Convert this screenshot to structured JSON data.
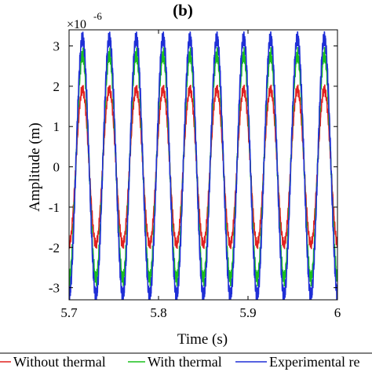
{
  "chart_data": {
    "type": "line",
    "title": "(b)",
    "xlabel": "Time (s)",
    "ylabel": "Amplitude (m)",
    "y_multiplier": {
      "base": "×10",
      "exponent": "-6"
    },
    "xlim": [
      5.7,
      6.0
    ],
    "ylim": [
      -3.3,
      3.4
    ],
    "x_ticks": [
      "5.7",
      "5.8",
      "5.9",
      "6"
    ],
    "y_ticks": [
      "-3",
      "-2",
      "-1",
      "0",
      "1",
      "2",
      "3"
    ],
    "grid": false,
    "legend_position": "bottom",
    "frequency_hz": 33.3,
    "series": [
      {
        "name": "Without thermal",
        "color": "#e0201f",
        "amplitude": 1.92
      },
      {
        "name": "With thermal",
        "color": "#19c01c",
        "amplitude": 2.78
      },
      {
        "name": "Experimental re",
        "color": "#1f2fd6",
        "amplitude": 3.2
      }
    ]
  }
}
